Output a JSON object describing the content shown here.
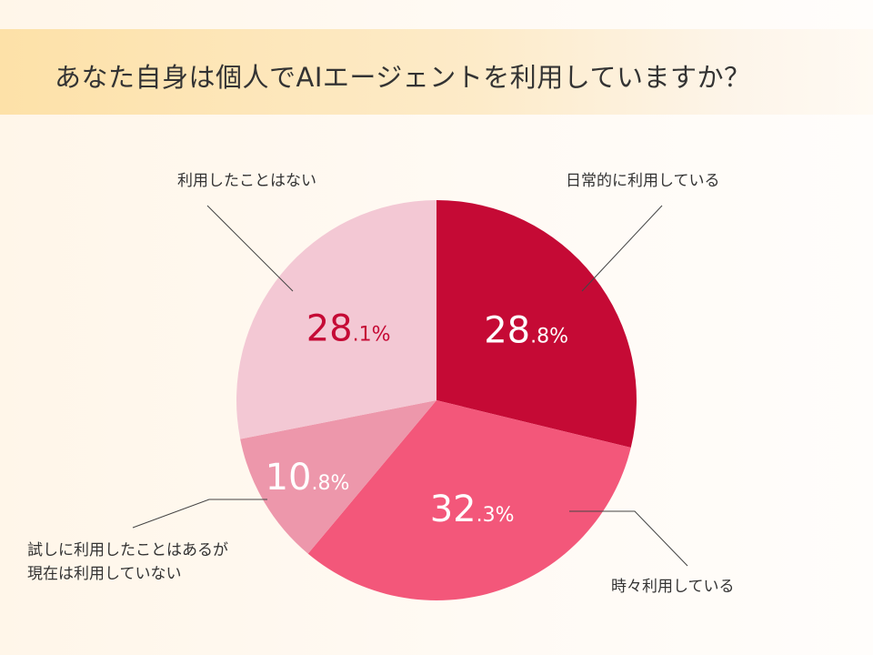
{
  "title": "あなた自身は個人でAIエージェントを利用していますか？",
  "chart_data": {
    "type": "pie",
    "slices": [
      {
        "label": "日常的に利用している",
        "value": 28.8,
        "display_int": "28",
        "display_dec": ".8%",
        "color": "#c50a35",
        "label_color": "#ffffff"
      },
      {
        "label": "時々利用している",
        "value": 32.3,
        "display_int": "32",
        "display_dec": ".3%",
        "color": "#f3577a",
        "label_color": "#ffffff"
      },
      {
        "label": "試しに利用したことはあるが現在は利用していない",
        "label_lines": [
          "試しに利用したことはあるが",
          "現在は利用していない"
        ],
        "value": 10.8,
        "display_int": "10",
        "display_dec": ".8%",
        "color": "#ed97ab",
        "label_color": "#ffffff"
      },
      {
        "label": "利用したことはない",
        "value": 28.1,
        "display_int": "28",
        "display_dec": ".1%",
        "color": "#f3c8d4",
        "label_color": "#c50a35"
      }
    ],
    "unit": "%"
  }
}
